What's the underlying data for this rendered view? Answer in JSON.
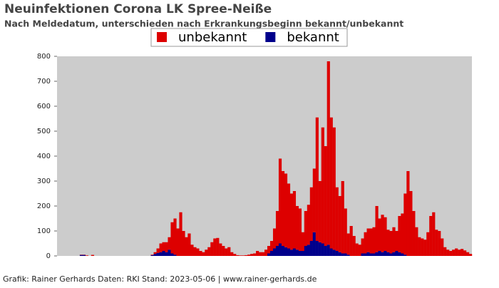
{
  "chart_data": {
    "type": "stacked_bar",
    "title": "Neuinfektionen Corona LK Spree-Neiße",
    "subtitle": "Nach Meldedatum, unterschieden nach Erkrankungsbeginn bekannt/unbekannt",
    "source": "Grafik: Rainer Gerhards Daten: RKI Stand: 2023-05-06 | www.rainer-gerhards.de",
    "ylim": [
      0,
      800
    ],
    "yticks": [
      0,
      100,
      200,
      300,
      400,
      500,
      600,
      700,
      800
    ],
    "background": "#cccccc",
    "legend": "top",
    "series": [
      {
        "name": "bekannt",
        "color": "#00008b",
        "values": [
          0,
          0,
          0,
          0,
          0,
          0,
          0,
          0,
          4,
          4,
          0,
          0,
          0,
          0,
          0,
          0,
          0,
          0,
          0,
          0,
          0,
          0,
          0,
          0,
          0,
          0,
          0,
          0,
          0,
          0,
          0,
          0,
          0,
          3,
          8,
          12,
          15,
          20,
          15,
          25,
          10,
          5,
          0,
          0,
          0,
          0,
          0,
          0,
          0,
          0,
          0,
          0,
          0,
          0,
          0,
          0,
          0,
          0,
          0,
          0,
          0,
          0,
          0,
          0,
          0,
          0,
          0,
          0,
          0,
          0,
          0,
          0,
          0,
          0,
          10,
          20,
          30,
          40,
          50,
          40,
          35,
          30,
          25,
          30,
          25,
          20,
          20,
          40,
          45,
          60,
          95,
          60,
          55,
          50,
          40,
          45,
          30,
          25,
          20,
          15,
          10,
          10,
          5,
          0,
          0,
          0,
          0,
          10,
          10,
          15,
          10,
          10,
          15,
          20,
          15,
          20,
          15,
          10,
          15,
          20,
          15,
          10,
          5,
          0,
          0,
          0,
          0,
          0,
          0,
          0,
          0,
          0,
          0,
          0,
          0,
          0,
          0,
          0,
          0,
          0,
          0,
          0,
          0,
          0,
          0,
          0
        ]
      },
      {
        "name": "unbekannt",
        "color": "#dd0000",
        "values": [
          0,
          0,
          0,
          0,
          0,
          0,
          0,
          0,
          1,
          1,
          2,
          0,
          4,
          0,
          0,
          0,
          0,
          0,
          0,
          0,
          0,
          0,
          0,
          0,
          0,
          0,
          0,
          0,
          0,
          0,
          0,
          0,
          0,
          2,
          7,
          18,
          35,
          35,
          40,
          50,
          125,
          145,
          110,
          175,
          100,
          75,
          90,
          45,
          35,
          30,
          20,
          15,
          25,
          35,
          55,
          70,
          72,
          50,
          40,
          30,
          35,
          15,
          8,
          3,
          2,
          2,
          3,
          5,
          8,
          10,
          20,
          15,
          15,
          25,
          30,
          40,
          80,
          140,
          340,
          300,
          295,
          260,
          225,
          230,
          175,
          170,
          75,
          140,
          160,
          215,
          255,
          495,
          245,
          465,
          400,
          735,
          525,
          490,
          255,
          225,
          290,
          180,
          85,
          120,
          80,
          50,
          45,
          60,
          85,
          95,
          100,
          105,
          185,
          130,
          150,
          135,
          90,
          90,
          100,
          80,
          145,
          160,
          245,
          340,
          260,
          180,
          115,
          75,
          70,
          65,
          95,
          160,
          175,
          105,
          100,
          70,
          35,
          25,
          20,
          25,
          30,
          25,
          28,
          22,
          15,
          8
        ]
      }
    ]
  }
}
